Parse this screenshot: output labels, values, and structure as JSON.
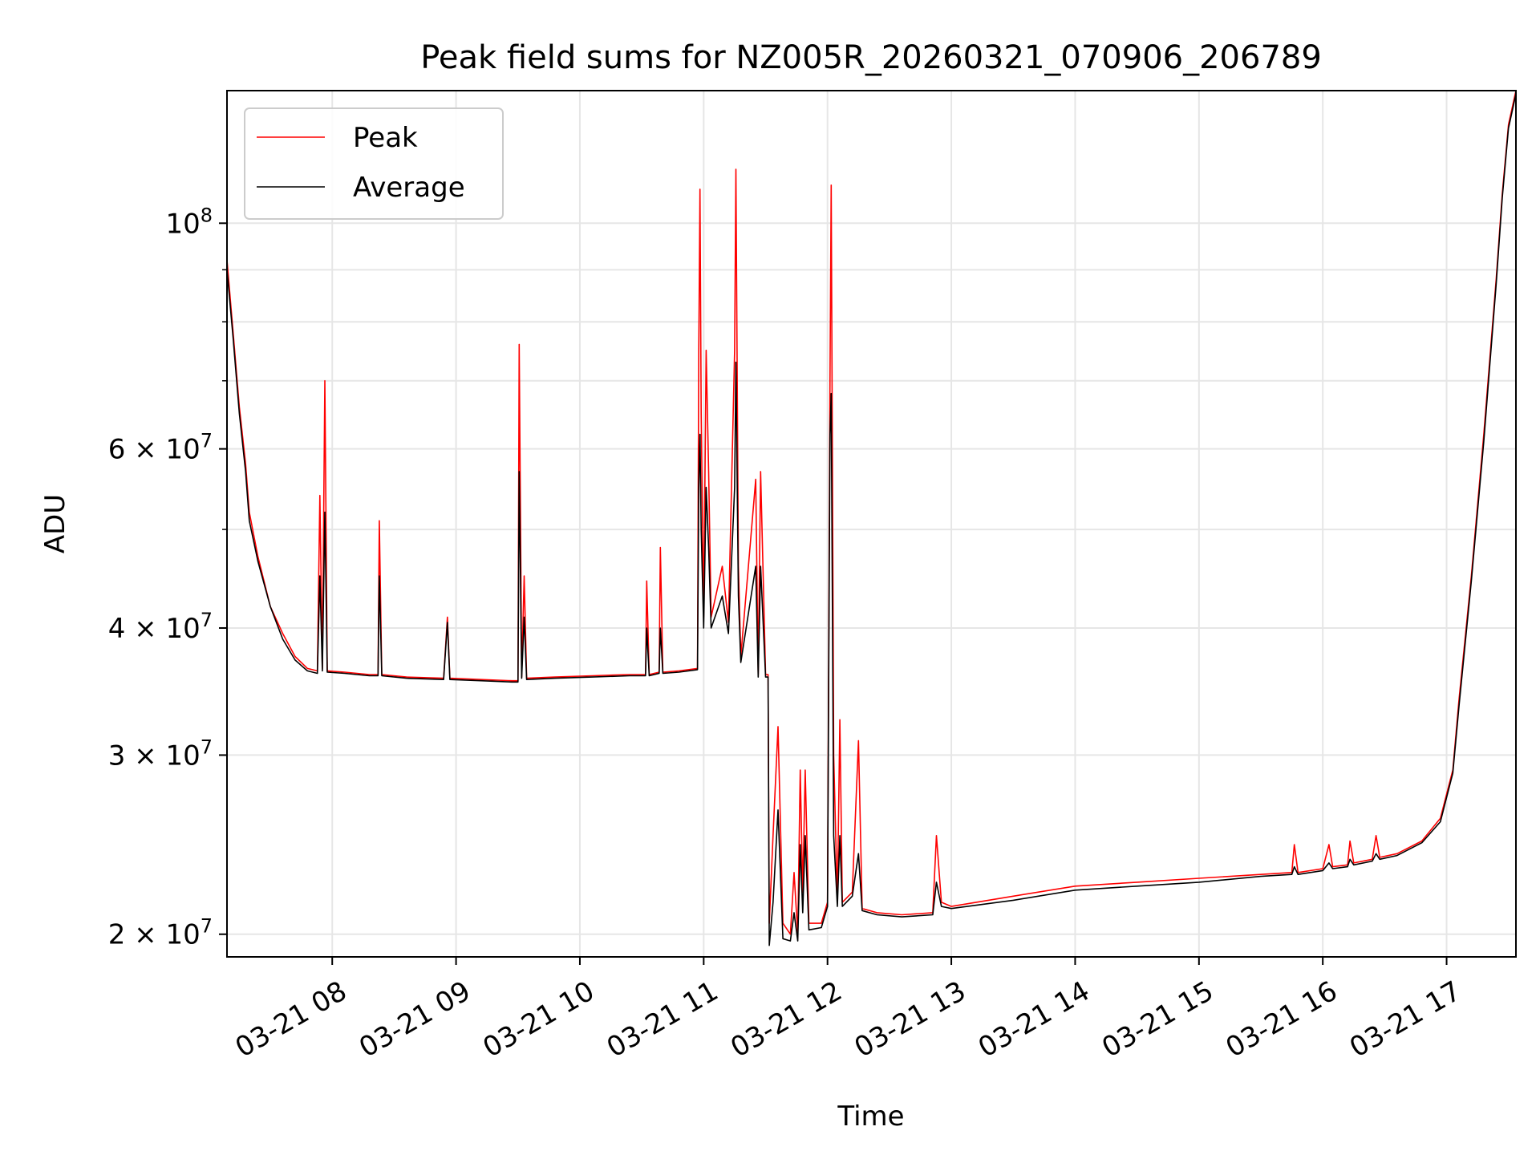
{
  "chart_data": {
    "type": "line",
    "title": "Peak field sums for NZ005R_20260321_070906_206789",
    "xlabel": "Time",
    "ylabel": "ADU",
    "yscale": "log",
    "xlim": [
      7.15,
      17.56
    ],
    "ylim": [
      19000000,
      135000000
    ],
    "grid": true,
    "legend_position": "top-left",
    "x_ticks": [
      {
        "value": 8,
        "label": "03-21 08"
      },
      {
        "value": 9,
        "label": "03-21 09"
      },
      {
        "value": 10,
        "label": "03-21 10"
      },
      {
        "value": 11,
        "label": "03-21 11"
      },
      {
        "value": 12,
        "label": "03-21 12"
      },
      {
        "value": 13,
        "label": "03-21 13"
      },
      {
        "value": 14,
        "label": "03-21 14"
      },
      {
        "value": 15,
        "label": "03-21 15"
      },
      {
        "value": 16,
        "label": "03-21 16"
      },
      {
        "value": 17,
        "label": "03-21 17"
      }
    ],
    "y_ticks": [
      {
        "value": 20000000,
        "base": "2 × 10",
        "exp": "7"
      },
      {
        "value": 30000000,
        "base": "3 × 10",
        "exp": "7"
      },
      {
        "value": 40000000,
        "base": "4 × 10",
        "exp": "7"
      },
      {
        "value": 60000000,
        "base": "6 × 10",
        "exp": "7"
      },
      {
        "value": 100000000,
        "base": "10",
        "exp": "8"
      }
    ],
    "y_minor": [
      50000000,
      70000000,
      80000000,
      90000000
    ],
    "series": [
      {
        "name": "Peak",
        "color": "#ff0000",
        "points": [
          [
            7.15,
            92000000
          ],
          [
            7.2,
            78000000
          ],
          [
            7.25,
            66000000
          ],
          [
            7.3,
            58000000
          ],
          [
            7.33,
            52000000
          ],
          [
            7.4,
            47000000
          ],
          [
            7.5,
            42000000
          ],
          [
            7.6,
            39500000
          ],
          [
            7.7,
            37500000
          ],
          [
            7.8,
            36500000
          ],
          [
            7.88,
            36300000
          ],
          [
            7.9,
            54000000
          ],
          [
            7.92,
            36500000
          ],
          [
            7.94,
            70000000
          ],
          [
            7.96,
            36300000
          ],
          [
            8.1,
            36200000
          ],
          [
            8.3,
            36000000
          ],
          [
            8.37,
            36000000
          ],
          [
            8.38,
            51000000
          ],
          [
            8.4,
            36000000
          ],
          [
            8.6,
            35800000
          ],
          [
            8.9,
            35700000
          ],
          [
            8.93,
            41000000
          ],
          [
            8.95,
            35700000
          ],
          [
            9.2,
            35600000
          ],
          [
            9.45,
            35500000
          ],
          [
            9.5,
            35500000
          ],
          [
            9.51,
            76000000
          ],
          [
            9.53,
            35800000
          ],
          [
            9.55,
            45000000
          ],
          [
            9.57,
            35700000
          ],
          [
            9.8,
            35800000
          ],
          [
            10.1,
            35900000
          ],
          [
            10.4,
            36000000
          ],
          [
            10.53,
            36000000
          ],
          [
            10.54,
            44500000
          ],
          [
            10.56,
            36000000
          ],
          [
            10.64,
            36200000
          ],
          [
            10.65,
            48000000
          ],
          [
            10.67,
            36200000
          ],
          [
            10.8,
            36300000
          ],
          [
            10.95,
            36500000
          ],
          [
            10.96,
            75000000
          ],
          [
            10.97,
            108000000
          ],
          [
            10.98,
            65000000
          ],
          [
            11.0,
            41000000
          ],
          [
            11.02,
            75000000
          ],
          [
            11.04,
            57000000
          ],
          [
            11.06,
            41000000
          ],
          [
            11.15,
            46000000
          ],
          [
            11.2,
            40500000
          ],
          [
            11.25,
            75000000
          ],
          [
            11.26,
            113000000
          ],
          [
            11.28,
            46000000
          ],
          [
            11.3,
            37500000
          ],
          [
            11.42,
            56000000
          ],
          [
            11.44,
            36000000
          ],
          [
            11.46,
            57000000
          ],
          [
            11.5,
            36000000
          ],
          [
            11.52,
            36000000
          ],
          [
            11.53,
            20500000
          ],
          [
            11.56,
            25000000
          ],
          [
            11.6,
            32000000
          ],
          [
            11.64,
            20500000
          ],
          [
            11.7,
            20000000
          ],
          [
            11.73,
            23000000
          ],
          [
            11.76,
            20000000
          ],
          [
            11.78,
            29000000
          ],
          [
            11.8,
            22000000
          ],
          [
            11.82,
            29000000
          ],
          [
            11.85,
            20500000
          ],
          [
            11.95,
            20500000
          ],
          [
            12.0,
            21500000
          ],
          [
            12.02,
            70000000
          ],
          [
            12.03,
            109000000
          ],
          [
            12.05,
            30000000
          ],
          [
            12.08,
            21500000
          ],
          [
            12.1,
            32500000
          ],
          [
            12.12,
            21500000
          ],
          [
            12.2,
            22000000
          ],
          [
            12.25,
            31000000
          ],
          [
            12.28,
            21200000
          ],
          [
            12.4,
            21000000
          ],
          [
            12.6,
            20900000
          ],
          [
            12.85,
            21000000
          ],
          [
            12.88,
            25000000
          ],
          [
            12.92,
            21500000
          ],
          [
            13.0,
            21300000
          ],
          [
            13.5,
            21800000
          ],
          [
            14.0,
            22300000
          ],
          [
            14.5,
            22500000
          ],
          [
            15.0,
            22700000
          ],
          [
            15.5,
            22900000
          ],
          [
            15.75,
            23000000
          ],
          [
            15.77,
            24500000
          ],
          [
            15.8,
            23000000
          ],
          [
            16.0,
            23200000
          ],
          [
            16.05,
            24500000
          ],
          [
            16.08,
            23300000
          ],
          [
            16.2,
            23400000
          ],
          [
            16.22,
            24700000
          ],
          [
            16.25,
            23500000
          ],
          [
            16.4,
            23700000
          ],
          [
            16.43,
            25000000
          ],
          [
            16.46,
            23800000
          ],
          [
            16.6,
            24000000
          ],
          [
            16.8,
            24700000
          ],
          [
            16.95,
            26000000
          ],
          [
            17.05,
            29000000
          ],
          [
            17.1,
            34000000
          ],
          [
            17.2,
            45000000
          ],
          [
            17.3,
            62000000
          ],
          [
            17.4,
            88000000
          ],
          [
            17.45,
            107000000
          ],
          [
            17.5,
            125000000
          ],
          [
            17.56,
            135000000
          ]
        ]
      },
      {
        "name": "Average",
        "color": "#000000",
        "points": [
          [
            7.15,
            90000000
          ],
          [
            7.2,
            77000000
          ],
          [
            7.25,
            65000000
          ],
          [
            7.3,
            57000000
          ],
          [
            7.33,
            51000000
          ],
          [
            7.4,
            46500000
          ],
          [
            7.5,
            42000000
          ],
          [
            7.6,
            39000000
          ],
          [
            7.7,
            37200000
          ],
          [
            7.8,
            36300000
          ],
          [
            7.88,
            36100000
          ],
          [
            7.9,
            45000000
          ],
          [
            7.92,
            36300000
          ],
          [
            7.94,
            52000000
          ],
          [
            7.96,
            36200000
          ],
          [
            8.1,
            36100000
          ],
          [
            8.3,
            35900000
          ],
          [
            8.37,
            35900000
          ],
          [
            8.38,
            45000000
          ],
          [
            8.4,
            35900000
          ],
          [
            8.6,
            35700000
          ],
          [
            8.9,
            35600000
          ],
          [
            8.93,
            40500000
          ],
          [
            8.95,
            35600000
          ],
          [
            9.2,
            35500000
          ],
          [
            9.45,
            35400000
          ],
          [
            9.5,
            35400000
          ],
          [
            9.51,
            57000000
          ],
          [
            9.53,
            35700000
          ],
          [
            9.55,
            41000000
          ],
          [
            9.57,
            35600000
          ],
          [
            9.8,
            35700000
          ],
          [
            10.1,
            35800000
          ],
          [
            10.4,
            35900000
          ],
          [
            10.53,
            35900000
          ],
          [
            10.54,
            40000000
          ],
          [
            10.56,
            35900000
          ],
          [
            10.64,
            36100000
          ],
          [
            10.65,
            40000000
          ],
          [
            10.67,
            36100000
          ],
          [
            10.8,
            36200000
          ],
          [
            10.95,
            36400000
          ],
          [
            10.96,
            55000000
          ],
          [
            10.97,
            62000000
          ],
          [
            10.98,
            50000000
          ],
          [
            11.0,
            40000000
          ],
          [
            11.02,
            55000000
          ],
          [
            11.04,
            48000000
          ],
          [
            11.06,
            40000000
          ],
          [
            11.15,
            43000000
          ],
          [
            11.2,
            39500000
          ],
          [
            11.25,
            55000000
          ],
          [
            11.26,
            73000000
          ],
          [
            11.28,
            43000000
          ],
          [
            11.3,
            37000000
          ],
          [
            11.42,
            46000000
          ],
          [
            11.44,
            35800000
          ],
          [
            11.46,
            46000000
          ],
          [
            11.5,
            35800000
          ],
          [
            11.52,
            35800000
          ],
          [
            11.53,
            19500000
          ],
          [
            11.56,
            21500000
          ],
          [
            11.6,
            26500000
          ],
          [
            11.64,
            19800000
          ],
          [
            11.7,
            19700000
          ],
          [
            11.73,
            21000000
          ],
          [
            11.76,
            19700000
          ],
          [
            11.78,
            24500000
          ],
          [
            11.8,
            21000000
          ],
          [
            11.82,
            25000000
          ],
          [
            11.85,
            20200000
          ],
          [
            11.95,
            20300000
          ],
          [
            12.0,
            21300000
          ],
          [
            12.02,
            62000000
          ],
          [
            12.03,
            68000000
          ],
          [
            12.05,
            25000000
          ],
          [
            12.08,
            21300000
          ],
          [
            12.1,
            25000000
          ],
          [
            12.12,
            21300000
          ],
          [
            12.2,
            21800000
          ],
          [
            12.25,
            24000000
          ],
          [
            12.28,
            21100000
          ],
          [
            12.4,
            20900000
          ],
          [
            12.6,
            20800000
          ],
          [
            12.85,
            20900000
          ],
          [
            12.88,
            22500000
          ],
          [
            12.92,
            21300000
          ],
          [
            13.0,
            21200000
          ],
          [
            13.5,
            21600000
          ],
          [
            14.0,
            22100000
          ],
          [
            14.5,
            22300000
          ],
          [
            15.0,
            22500000
          ],
          [
            15.5,
            22800000
          ],
          [
            15.75,
            22900000
          ],
          [
            15.77,
            23300000
          ],
          [
            15.8,
            22900000
          ],
          [
            16.0,
            23100000
          ],
          [
            16.05,
            23500000
          ],
          [
            16.08,
            23200000
          ],
          [
            16.2,
            23300000
          ],
          [
            16.22,
            23700000
          ],
          [
            16.25,
            23400000
          ],
          [
            16.4,
            23600000
          ],
          [
            16.43,
            24000000
          ],
          [
            16.46,
            23700000
          ],
          [
            16.6,
            23900000
          ],
          [
            16.8,
            24600000
          ],
          [
            16.95,
            25800000
          ],
          [
            17.05,
            28800000
          ],
          [
            17.1,
            33500000
          ],
          [
            17.2,
            44500000
          ],
          [
            17.3,
            61000000
          ],
          [
            17.4,
            87000000
          ],
          [
            17.45,
            106000000
          ],
          [
            17.5,
            124000000
          ],
          [
            17.56,
            134000000
          ]
        ]
      }
    ]
  }
}
